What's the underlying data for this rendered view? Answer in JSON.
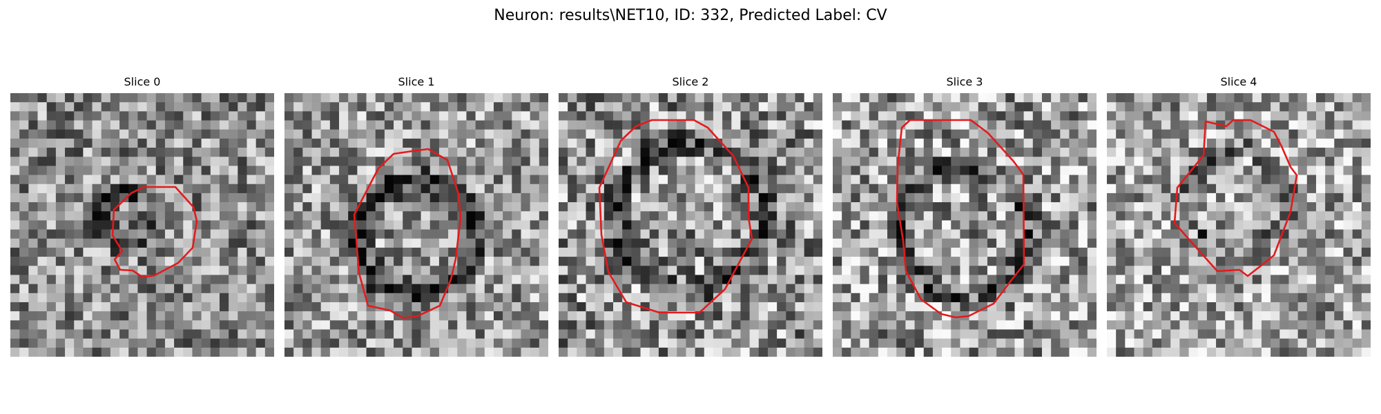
{
  "figure": {
    "title": "Neuron: results\\NET10, ID: 332, Predicted Label: CV",
    "outline_color": "#e41a1c",
    "slices": [
      {
        "title": "Slice 0"
      },
      {
        "title": "Slice 1"
      },
      {
        "title": "Slice 2"
      },
      {
        "title": "Slice 3"
      },
      {
        "title": "Slice 4"
      }
    ]
  }
}
